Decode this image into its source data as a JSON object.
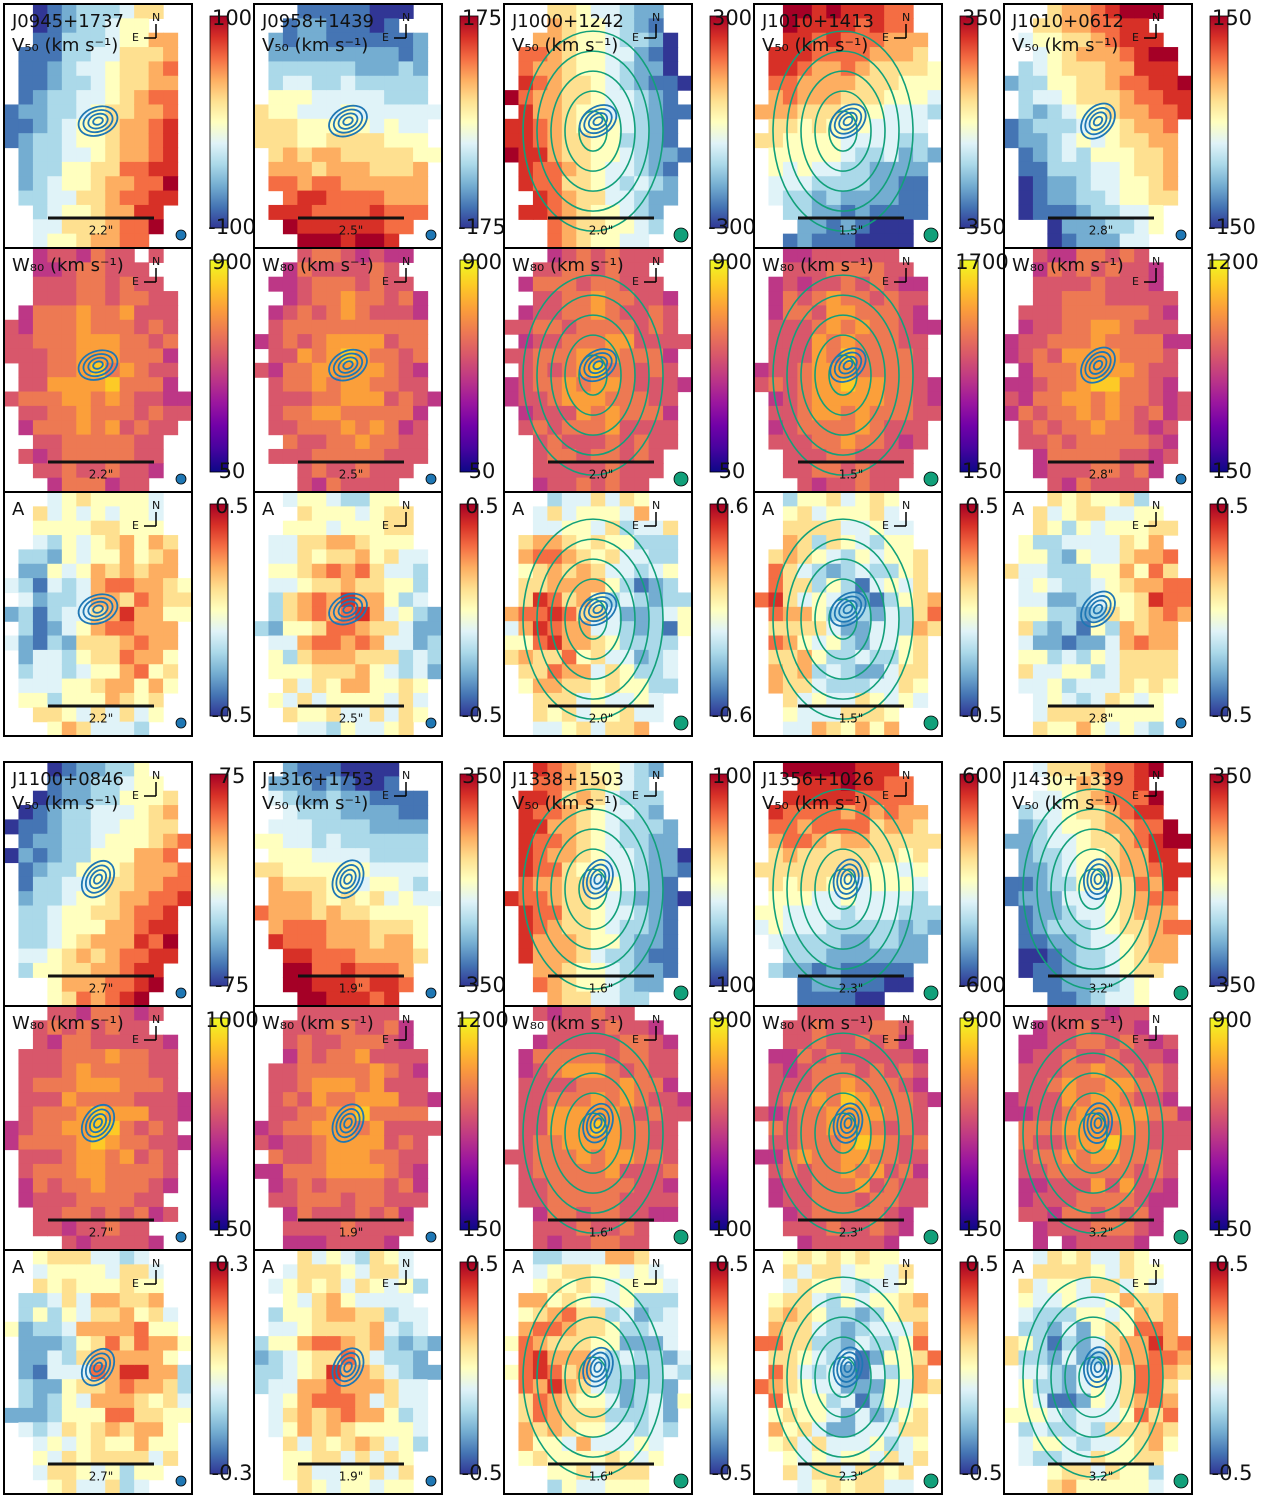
{
  "figure": {
    "compass_labels": {
      "north": "N",
      "east": "E"
    },
    "row_labels": [
      "V₅₀ (km s⁻¹)",
      "W₈₀ (km s⁻¹)",
      "A"
    ],
    "galaxies": [
      {
        "name": "J0945+1737",
        "scale": "2.2\"",
        "colorbars": [
          [
            100,
            -100
          ],
          [
            900,
            50
          ],
          [
            0.5,
            -0.5
          ]
        ]
      },
      {
        "name": "J0958+1439",
        "scale": "2.5\"",
        "colorbars": [
          [
            175,
            -175
          ],
          [
            900,
            50
          ],
          [
            0.5,
            -0.5
          ]
        ]
      },
      {
        "name": "J1000+1242",
        "scale": "2.0\"",
        "colorbars": [
          [
            300,
            -300
          ],
          [
            900,
            50
          ],
          [
            0.6,
            -0.6
          ]
        ]
      },
      {
        "name": "J1010+1413",
        "scale": "1.5\"",
        "colorbars": [
          [
            350,
            -350
          ],
          [
            1700,
            150
          ],
          [
            0.5,
            -0.5
          ]
        ]
      },
      {
        "name": "J1010+0612",
        "scale": "2.8\"",
        "colorbars": [
          [
            150,
            -150
          ],
          [
            1200,
            150
          ],
          [
            0.5,
            -0.5
          ]
        ]
      },
      {
        "name": "J1100+0846",
        "scale": "2.7\"",
        "colorbars": [
          [
            75,
            -75
          ],
          [
            1000,
            150
          ],
          [
            0.3,
            -0.3
          ]
        ]
      },
      {
        "name": "J1316+1753",
        "scale": "1.9\"",
        "colorbars": [
          [
            350,
            -350
          ],
          [
            1200,
            150
          ],
          [
            0.5,
            -0.5
          ]
        ]
      },
      {
        "name": "J1338+1503",
        "scale": "1.6\"",
        "colorbars": [
          [
            100,
            -100
          ],
          [
            900,
            100
          ],
          [
            0.5,
            -0.5
          ]
        ]
      },
      {
        "name": "J1356+1026",
        "scale": "2.3\"",
        "colorbars": [
          [
            600,
            -600
          ],
          [
            900,
            150
          ],
          [
            0.5,
            -0.5
          ]
        ]
      },
      {
        "name": "J1430+1339",
        "scale": "3.2\"",
        "colorbars": [
          [
            350,
            -350
          ],
          [
            900,
            150
          ],
          [
            0.5,
            -0.5
          ]
        ]
      }
    ]
  }
}
